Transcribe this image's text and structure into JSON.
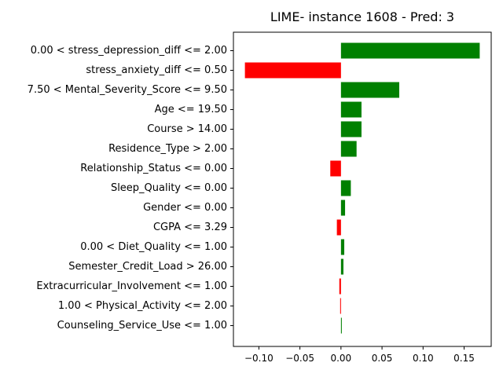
{
  "chart_data": {
    "type": "bar",
    "orientation": "horizontal",
    "title": "LIME- instance 1608 - Pred: 3",
    "xlabel": "",
    "ylabel": "",
    "xlim": [
      -0.131,
      0.183
    ],
    "xticks": [
      {
        "value": -0.1,
        "label": "−0.10"
      },
      {
        "value": -0.05,
        "label": "−0.05"
      },
      {
        "value": 0.0,
        "label": "0.00"
      },
      {
        "value": 0.05,
        "label": "0.05"
      },
      {
        "value": 0.1,
        "label": "0.10"
      },
      {
        "value": 0.15,
        "label": "0.15"
      }
    ],
    "grid": false,
    "colors": {
      "positive": "#008000",
      "negative": "#ff0000"
    },
    "categories": [
      "0.00 < stress_depression_diff <= 2.00",
      "stress_anxiety_diff <= 0.50",
      "7.50 < Mental_Severity_Score <= 9.50",
      "Age <= 19.50",
      "Course > 14.00",
      "Residence_Type > 2.00",
      "Relationship_Status <= 0.00",
      "Sleep_Quality <= 0.00",
      "Gender <= 0.00",
      "CGPA <= 3.29",
      "0.00 < Diet_Quality <= 1.00",
      "Semester_Credit_Load > 26.00",
      "Extracurricular_Involvement <= 1.00",
      "1.00 < Physical_Activity <= 2.00",
      "Counseling_Service_Use <= 1.00"
    ],
    "values": [
      0.169,
      -0.117,
      0.071,
      0.025,
      0.025,
      0.019,
      -0.013,
      0.012,
      0.005,
      -0.005,
      0.004,
      0.003,
      -0.002,
      -0.001,
      0.001
    ]
  }
}
